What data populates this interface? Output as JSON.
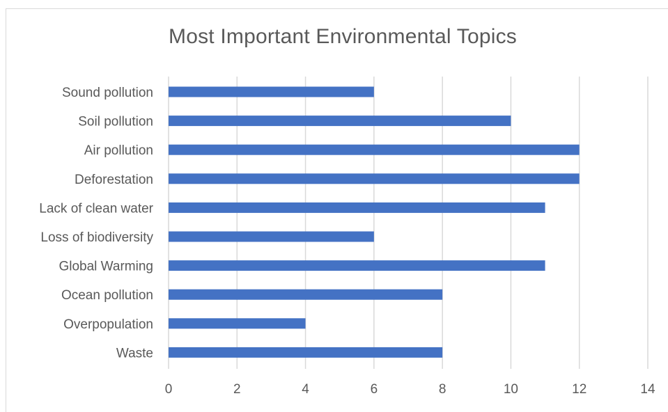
{
  "chart_data": {
    "type": "bar",
    "orientation": "horizontal",
    "title": "Most Important Environmental Topics",
    "categories": [
      "Sound pollution",
      "Soil pollution",
      "Air pollution",
      "Deforestation",
      "Lack of clean water",
      "Loss of biodiversity",
      "Global Warming",
      "Ocean pollution",
      "Overpopulation",
      "Waste"
    ],
    "values": [
      6,
      10,
      12,
      12,
      11,
      6,
      11,
      8,
      4,
      8
    ],
    "xlim": [
      0,
      14
    ],
    "ticks": [
      "0",
      "2",
      "4",
      "6",
      "8",
      "10",
      "12",
      "14"
    ],
    "grid": true,
    "legend": "none",
    "bar_color": "#4472c4",
    "grid_color": "#d9d9d9",
    "text_color": "#595959"
  }
}
